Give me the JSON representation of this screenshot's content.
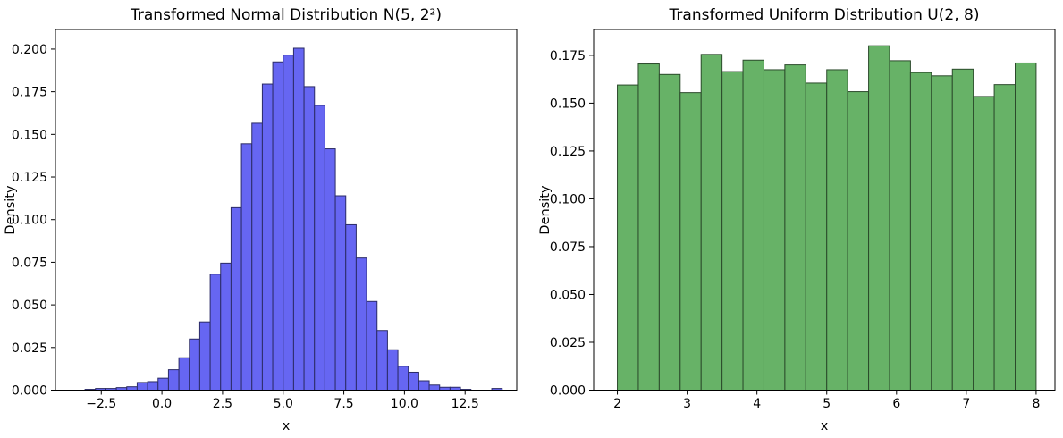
{
  "figure": {
    "background": "#ffffff"
  },
  "chart_data": [
    {
      "type": "bar",
      "title": "Transformed Normal Distribution N(5, 2²)",
      "xlabel": "x",
      "ylabel": "Density",
      "bar_color": "#6666f2",
      "bar_edge_color": "#2b2b66",
      "bin_start": -3.17,
      "bin_width": 0.43,
      "densities": [
        0.0005,
        0.001,
        0.001,
        0.0015,
        0.002,
        0.0045,
        0.005,
        0.007,
        0.012,
        0.019,
        0.03,
        0.04,
        0.068,
        0.0745,
        0.107,
        0.1445,
        0.1565,
        0.1795,
        0.1925,
        0.1965,
        0.2005,
        0.178,
        0.167,
        0.1415,
        0.114,
        0.097,
        0.0775,
        0.052,
        0.035,
        0.0237,
        0.014,
        0.0105,
        0.0055,
        0.003,
        0.0017,
        0.0017,
        0.0005,
        0,
        0,
        0.001
      ],
      "xlim": [
        -4.39,
        14.63
      ],
      "ylim": [
        0,
        0.2115
      ],
      "x_tick_values": [
        -2.5,
        0,
        2.5,
        5,
        7.5,
        10,
        12.5
      ],
      "x_tick_labels": [
        "−2.5",
        "0.0",
        "2.5",
        "5.0",
        "7.5",
        "10.0",
        "12.5"
      ],
      "y_tick_values": [
        0,
        0.025,
        0.05,
        0.075,
        0.1,
        0.125,
        0.15,
        0.175,
        0.2
      ],
      "y_tick_labels": [
        "0.000",
        "0.025",
        "0.050",
        "0.075",
        "0.100",
        "0.125",
        "0.150",
        "0.175",
        "0.200"
      ],
      "grid": false,
      "legend_position": "none"
    },
    {
      "type": "bar",
      "title": "Transformed Uniform Distribution U(2, 8)",
      "xlabel": "x",
      "ylabel": "Density",
      "bar_color": "#67b267",
      "bar_edge_color": "#2b4a2b",
      "bin_start": 2.0,
      "bin_width": 0.3,
      "densities": [
        0.1595,
        0.1705,
        0.165,
        0.1555,
        0.1755,
        0.1665,
        0.1725,
        0.1675,
        0.17,
        0.1605,
        0.1675,
        0.156,
        0.18,
        0.1722,
        0.166,
        0.1643,
        0.1678,
        0.1535,
        0.1597,
        0.171
      ],
      "xlim": [
        1.66,
        8.27
      ],
      "ylim": [
        0,
        0.1885
      ],
      "x_tick_values": [
        2,
        3,
        4,
        5,
        6,
        7,
        8
      ],
      "x_tick_labels": [
        "2",
        "3",
        "4",
        "5",
        "6",
        "7",
        "8"
      ],
      "y_tick_values": [
        0,
        0.025,
        0.05,
        0.075,
        0.1,
        0.125,
        0.15,
        0.175
      ],
      "y_tick_labels": [
        "0.000",
        "0.025",
        "0.050",
        "0.075",
        "0.100",
        "0.125",
        "0.150",
        "0.175"
      ],
      "grid": false,
      "legend_position": "none"
    }
  ]
}
